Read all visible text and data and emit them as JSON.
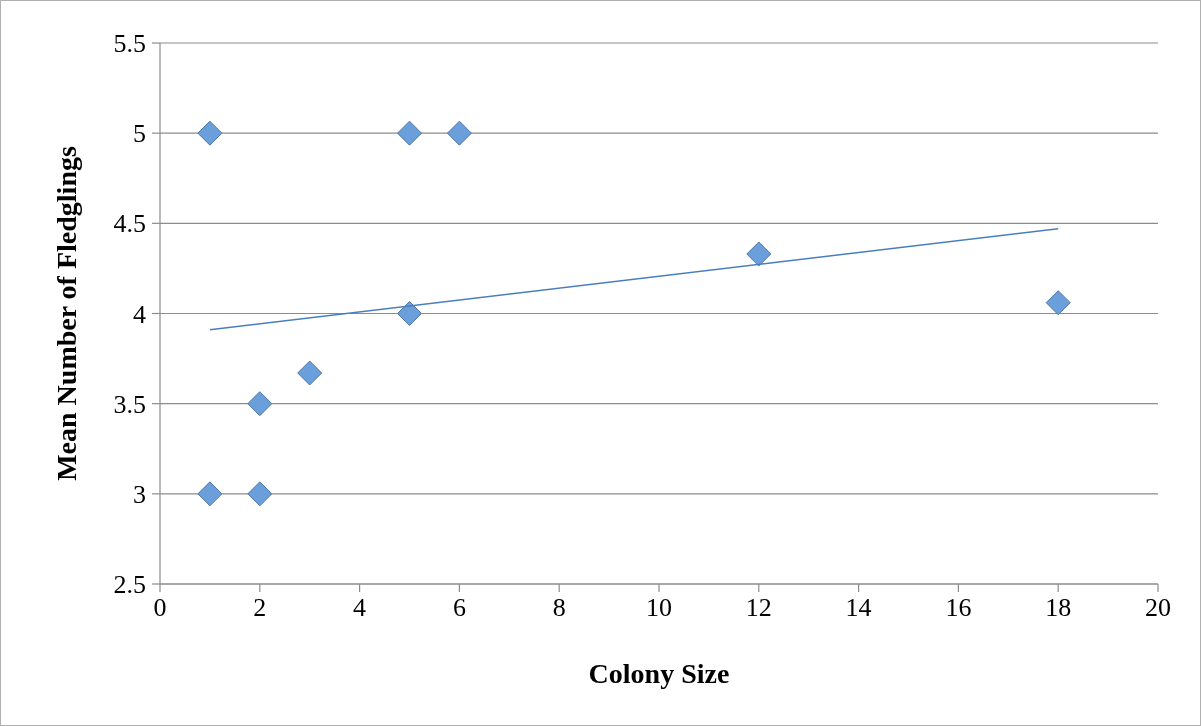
{
  "chart_data": {
    "type": "scatter",
    "xlabel": "Colony Size",
    "ylabel": "Mean Number of Fledglings",
    "xlim": [
      0,
      20
    ],
    "xticks": [
      0,
      2,
      4,
      6,
      8,
      10,
      12,
      14,
      16,
      18,
      20
    ],
    "ylim": [
      2.5,
      5.5
    ],
    "yticks": [
      2.5,
      3,
      3.5,
      4,
      4.5,
      5,
      5.5
    ],
    "grid": "y",
    "marker": "diamond",
    "series": [
      {
        "color": "#6a9fdb",
        "x": [
          1,
          5,
          6,
          12,
          18,
          5,
          3,
          2,
          1,
          2
        ],
        "values": [
          5,
          5,
          5,
          4.33,
          4.06,
          4,
          3.67,
          3.5,
          3,
          3
        ]
      },
      {
        "type": "line",
        "color": "#4a7ebb",
        "x": [
          1,
          18
        ],
        "values": [
          3.91,
          4.47
        ],
        "marker": "none"
      }
    ]
  }
}
